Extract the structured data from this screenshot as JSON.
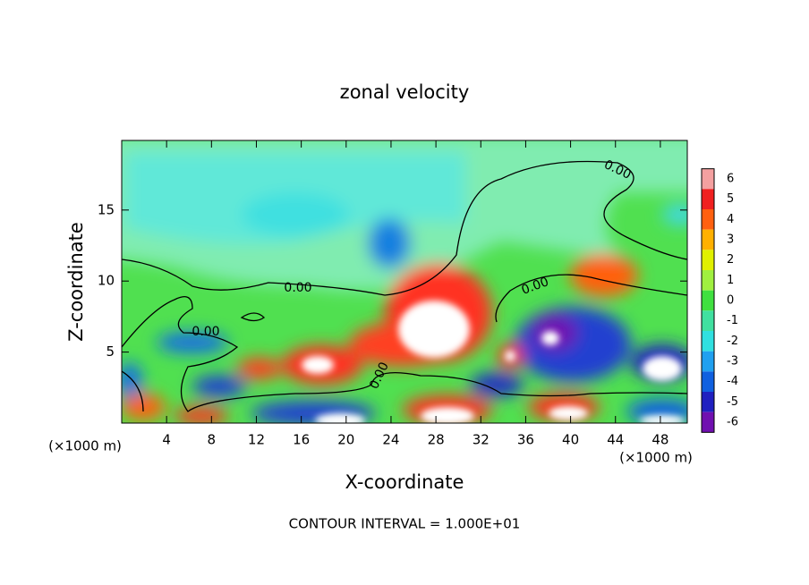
{
  "chart_data": {
    "type": "contour",
    "title": "zonal velocity",
    "xlabel": "X-coordinate",
    "ylabel": "Z-coordinate",
    "x_unit_left": "(×1000 m)",
    "x_unit_right": "(×1000 m)",
    "footer": "CONTOUR INTERVAL = 1.000E+01",
    "contour_labels": [
      "0.00",
      "0.00",
      "0.00",
      "0.00",
      "0.00"
    ],
    "xlim": [
      0,
      50.4
    ],
    "xticks": [
      4,
      8,
      12,
      16,
      20,
      24,
      28,
      32,
      36,
      40,
      44,
      48
    ],
    "ylim": [
      0,
      19.9
    ],
    "yticks": [
      5,
      10,
      15
    ],
    "colorbar_ticks": [
      6,
      5,
      4,
      3,
      2,
      1,
      0,
      -1,
      -2,
      -3,
      -4,
      -5,
      -6
    ],
    "colorbar_colors": [
      "#f4a0a0",
      "#f02020",
      "#ff6010",
      "#ffb000",
      "#e0f000",
      "#a0f040",
      "#40e040",
      "#40e0a0",
      "#30e0e0",
      "#20a0f0",
      "#1060e0",
      "#2020c0",
      "#7010b0"
    ]
  }
}
